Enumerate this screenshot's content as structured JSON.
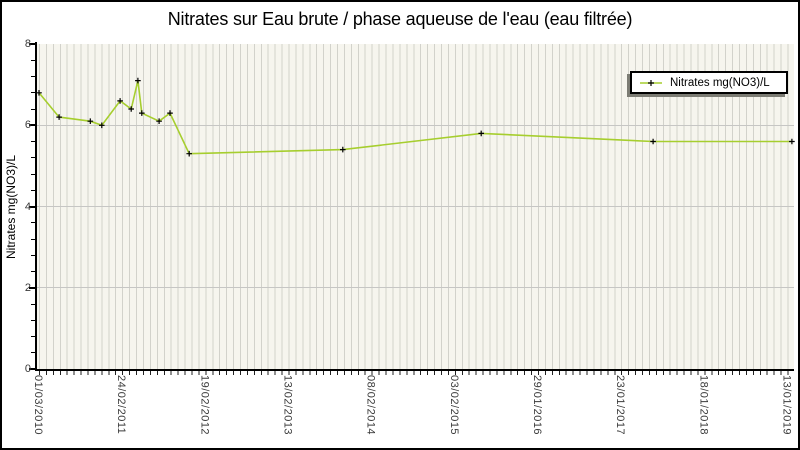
{
  "colors": {
    "background": "#ffffff",
    "plot_bg": "#f6f5ee",
    "stripe": "#d2d2cb",
    "hgrid": "#c6c6c4",
    "axis": "#000000",
    "line": "#a6ce2e",
    "marker": "#000000",
    "legend_shadow": "#7c7c74",
    "text": "#000000",
    "tick_text": "#3a3a3a"
  },
  "chart_data": {
    "type": "line",
    "title": "Nitrates sur Eau brute / phase aqueuse de l'eau (eau filtrée)",
    "ylabel": "Nitrates mg(NO3)/L",
    "legend": {
      "label": "Nitrates mg(NO3)/L",
      "position": "top-right"
    },
    "y_axis": {
      "min": 0,
      "max": 8,
      "major_ticks": [
        8,
        6,
        4,
        2,
        0
      ],
      "minor_step": 0.4,
      "gridline_values": [
        6,
        4,
        2
      ]
    },
    "x_axis": {
      "labels": [
        "01/03/2010",
        "24/02/2011",
        "19/02/2012",
        "13/02/2013",
        "08/02/2014",
        "03/02/2015",
        "29/01/2016",
        "23/01/2017",
        "18/01/2018",
        "13/01/2019"
      ],
      "tick_interval_days": 360,
      "minor_gridlines": "monthly"
    },
    "series": [
      {
        "name": "Nitrates mg(NO3)/L",
        "color": "#a6ce2e",
        "marker": "plus",
        "marker_color": "#000000",
        "points": [
          {
            "date": "01/03/2010",
            "value": 6.8
          },
          {
            "date": "27/05/2010",
            "value": 6.2
          },
          {
            "date": "09/10/2010",
            "value": 6.1
          },
          {
            "date": "28/11/2010",
            "value": 6.0
          },
          {
            "date": "15/02/2011",
            "value": 6.6
          },
          {
            "date": "04/04/2011",
            "value": 6.4
          },
          {
            "date": "03/05/2011",
            "value": 7.1
          },
          {
            "date": "20/05/2011",
            "value": 6.3
          },
          {
            "date": "03/08/2011",
            "value": 6.1
          },
          {
            "date": "19/09/2011",
            "value": 6.3
          },
          {
            "date": "11/12/2011",
            "value": 5.3
          },
          {
            "date": "06/10/2013",
            "value": 5.4
          },
          {
            "date": "28/05/2015",
            "value": 5.8
          },
          {
            "date": "10/06/2017",
            "value": 5.6
          },
          {
            "date": "01/02/2019",
            "value": 5.6
          }
        ]
      }
    ]
  }
}
